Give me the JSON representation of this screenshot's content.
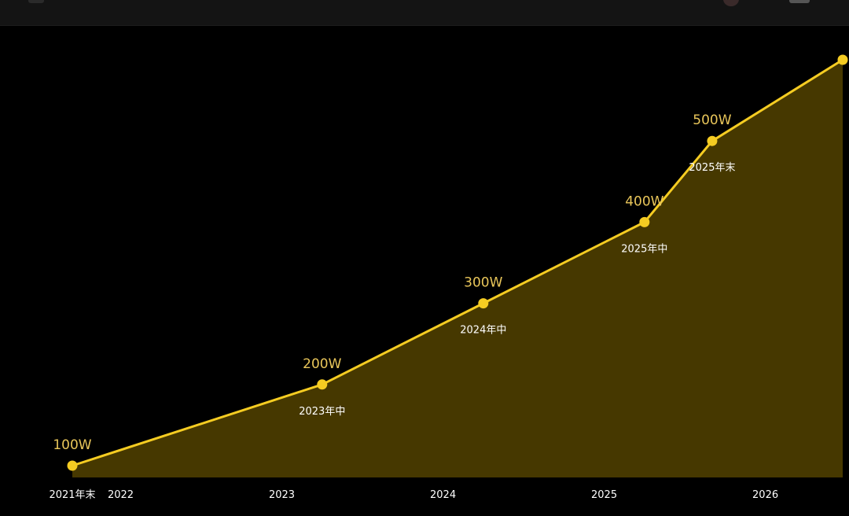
{
  "window": {
    "icons": [
      "menu-icon",
      "avatar-icon",
      "badge-icon"
    ]
  },
  "chart_data": {
    "type": "area",
    "title": "",
    "xlabel": "",
    "ylabel": "",
    "grid": false,
    "legend": false,
    "x_axis": {
      "ticks": [
        {
          "label": "2021年末",
          "x": 2021.95
        },
        {
          "label": "2022",
          "x": 2022.25
        },
        {
          "label": "2023",
          "x": 2023.25
        },
        {
          "label": "2024",
          "x": 2024.25
        },
        {
          "label": "2025",
          "x": 2025.25
        },
        {
          "label": "2026",
          "x": 2026.25
        }
      ],
      "range": [
        2021.95,
        2026.73
      ]
    },
    "y_axis": {
      "range": [
        0,
        600
      ]
    },
    "series": [
      {
        "color": "#f5cc22",
        "fill": "#4a3b00",
        "points": [
          {
            "x": 2021.95,
            "y": 100,
            "label": "100W",
            "date": ""
          },
          {
            "x": 2023.5,
            "y": 200,
            "label": "200W",
            "date": "2023年中"
          },
          {
            "x": 2024.5,
            "y": 300,
            "label": "300W",
            "date": "2024年中"
          },
          {
            "x": 2025.5,
            "y": 400,
            "label": "400W",
            "date": "2025年中"
          },
          {
            "x": 2025.92,
            "y": 500,
            "label": "500W",
            "date": "2025年末"
          },
          {
            "x": 2026.73,
            "y": 600,
            "label": "",
            "date": ""
          }
        ]
      }
    ]
  }
}
